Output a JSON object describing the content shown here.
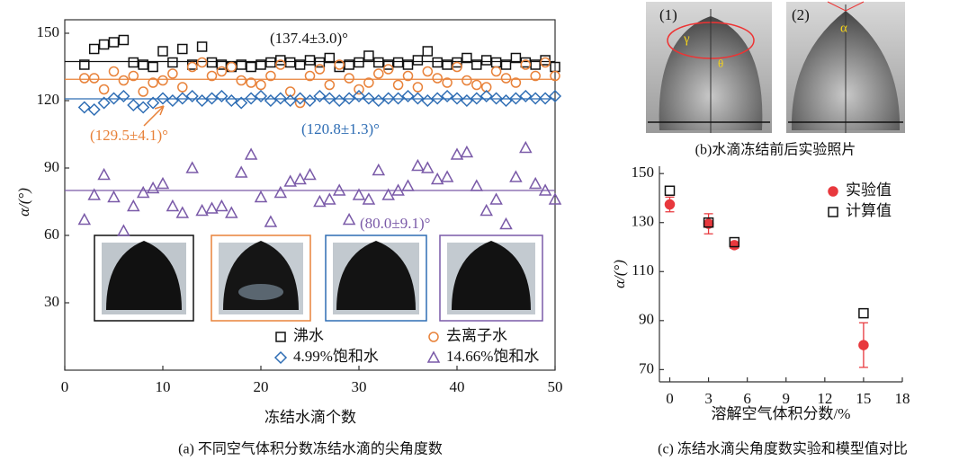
{
  "chart_data": [
    {
      "type": "scatter",
      "caption": "(a) 不同空气体积分数冻结水滴的尖角度数",
      "x_label": "冻结水滴个数",
      "y_label": "α/(°)",
      "xlim": [
        0,
        50
      ],
      "ylim": [
        0,
        156
      ],
      "xticks": [
        0,
        10,
        20,
        30,
        40,
        50
      ],
      "yticks": [
        30,
        60,
        90,
        120,
        150
      ],
      "legend": "lower center",
      "x": [
        2,
        3,
        4,
        5,
        6,
        7,
        8,
        9,
        10,
        11,
        12,
        13,
        14,
        15,
        16,
        17,
        18,
        19,
        20,
        21,
        22,
        23,
        24,
        25,
        26,
        27,
        28,
        29,
        30,
        31,
        32,
        33,
        34,
        35,
        36,
        37,
        38,
        39,
        40,
        41,
        42,
        43,
        44,
        45,
        46,
        47,
        48,
        49,
        50
      ],
      "series": [
        {
          "name": "沸水",
          "color": "#111111",
          "marker": "square",
          "values": [
            136,
            143,
            145,
            146,
            147,
            137,
            136,
            135,
            142,
            137,
            143,
            136,
            144,
            137,
            136,
            135,
            136,
            135,
            136,
            137,
            138,
            137,
            136,
            138,
            137,
            139,
            135,
            136,
            137,
            140,
            137,
            136,
            137,
            136,
            138,
            142,
            137,
            136,
            137,
            139,
            136,
            138,
            137,
            136,
            139,
            137,
            136,
            138,
            135
          ]
        },
        {
          "name": "去离子水",
          "color": "#e8823a",
          "marker": "circle",
          "values": [
            130,
            130,
            125,
            133,
            129,
            131,
            124,
            128,
            129,
            132,
            126,
            135,
            137,
            131,
            133,
            135,
            129,
            128,
            127,
            131,
            136,
            124,
            119,
            131,
            134,
            127,
            136,
            130,
            125,
            128,
            132,
            134,
            127,
            131,
            126,
            133,
            130,
            128,
            135,
            129,
            127,
            126,
            133,
            130,
            128,
            136,
            131,
            137,
            131
          ]
        },
        {
          "name": "4.99%饱和水",
          "color": "#2e6db4",
          "marker": "diamond",
          "values": [
            117,
            116,
            119,
            121,
            122,
            118,
            117,
            119,
            121,
            120,
            121,
            122,
            120,
            121,
            122,
            120,
            119,
            121,
            122,
            120,
            121,
            120,
            121,
            120,
            122,
            121,
            120,
            121,
            122,
            121,
            120,
            121,
            121,
            122,
            121,
            120,
            121,
            122,
            121,
            120,
            121,
            122,
            121,
            120,
            121,
            122,
            121,
            121,
            122
          ]
        },
        {
          "name": "14.66%饱和水",
          "color": "#7a5aa8",
          "marker": "triangle",
          "values": [
            67,
            78,
            87,
            77,
            62,
            73,
            79,
            81,
            83,
            73,
            70,
            90,
            71,
            72,
            73,
            70,
            88,
            96,
            77,
            66,
            79,
            84,
            85,
            87,
            75,
            76,
            80,
            67,
            78,
            76,
            89,
            78,
            80,
            82,
            91,
            90,
            85,
            86,
            96,
            97,
            82,
            71,
            76,
            65,
            86,
            99,
            83,
            80,
            76
          ]
        }
      ],
      "reference_lines": [
        {
          "value": 137.4,
          "color": "#111111",
          "label": "(137.4±3.0)°"
        },
        {
          "value": 129.5,
          "color": "#e8823a",
          "label": "(129.5±4.1)°"
        },
        {
          "value": 120.8,
          "color": "#2e6db4",
          "label": "(120.8±1.3)°"
        },
        {
          "value": 80.0,
          "color": "#7a5aa8",
          "label": "(80.0±9.1)°"
        }
      ]
    },
    {
      "type": "scatter",
      "caption": "(c) 冻结水滴尖角度数实验和模型值对比",
      "x_label": "溶解空气体积分数/%",
      "y_label": "α/(°)",
      "xlim": [
        -0.8,
        18
      ],
      "ylim": [
        65,
        153
      ],
      "xticks": [
        0,
        3,
        6,
        9,
        12,
        15,
        18
      ],
      "yticks": [
        70,
        90,
        110,
        130,
        150
      ],
      "legend": "upper right",
      "x": [
        0,
        3,
        5,
        15
      ],
      "series": [
        {
          "name": "实验值",
          "color": "#e8383d",
          "marker": "dot",
          "values": [
            137.4,
            129.5,
            120.8,
            80.0
          ],
          "errors": [
            3.0,
            4.1,
            1.3,
            9.1
          ]
        },
        {
          "name": "计算值",
          "color": "#111111",
          "marker": "square",
          "values": [
            143,
            130,
            122,
            93
          ]
        }
      ]
    }
  ],
  "photo_panel": {
    "labels": [
      "(1)",
      "(2)"
    ],
    "annotations": [
      "γ",
      "θ",
      "α"
    ],
    "caption": "(b)水滴冻结前后实验照片"
  }
}
